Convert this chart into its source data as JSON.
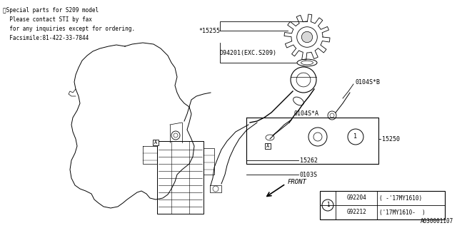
{
  "bg_color": "#ffffff",
  "line_color": "#000000",
  "text_color": "#000000",
  "note_lines": [
    "※Special parts for S209 model",
    "  Please contact STI by fax",
    "  for any inquiries except for ordering.",
    "  Facsimile:81-422-33-7844"
  ],
  "table_rows": [
    [
      "G92204",
      "( -'17MY1610)"
    ],
    [
      "G92212",
      "('17MY1610-  )"
    ]
  ],
  "figsize": [
    6.4,
    3.2
  ],
  "dpi": 100
}
